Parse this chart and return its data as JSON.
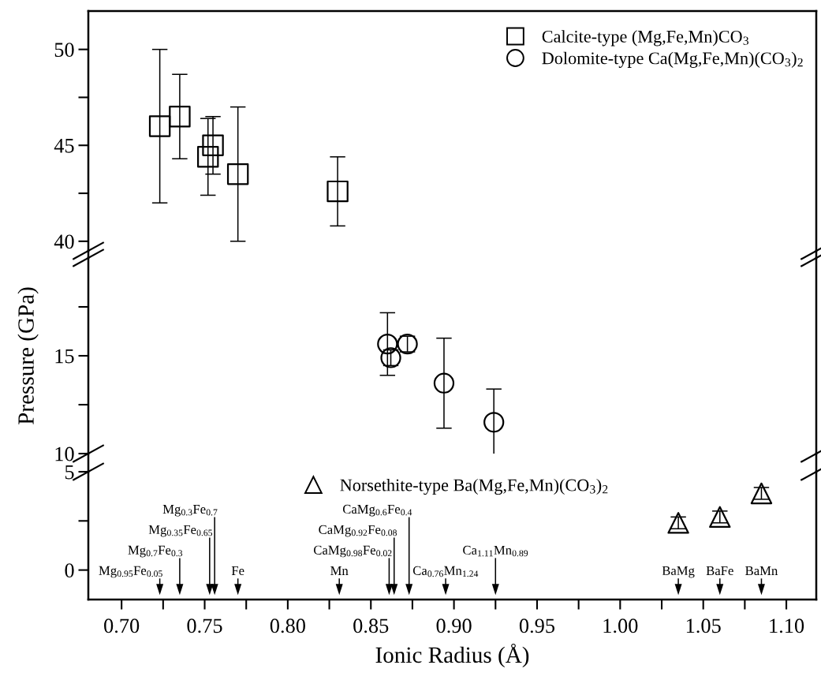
{
  "chart_data": [
    {
      "type": "scatter",
      "xlim": [
        0.68,
        1.118
      ],
      "ylim": [
        39.5,
        52
      ],
      "yticks": [
        40,
        {
          "value": 42.5,
          "label": null
        },
        45,
        {
          "value": 47.5,
          "label": null
        },
        50
      ],
      "tick_labels": "y",
      "legend": "top right",
      "marker": "square",
      "series": [
        {
          "name": "Calcite-type (Mg,Fe,Mn)CO$_{3}$",
          "color": "#000000",
          "x": [
            0.723,
            0.735,
            0.755,
            0.752,
            0.77,
            0.83
          ],
          "values": [
            46.0,
            46.5,
            45.0,
            44.4,
            43.5,
            42.6
          ],
          "errors": [
            4.0,
            2.2,
            1.5,
            2.0,
            3.5,
            1.8
          ]
        }
      ]
    },
    {
      "type": "scatter",
      "xlim": [
        0.68,
        1.118
      ],
      "ylim": [
        10,
        20
      ],
      "yticks": [
        10,
        {
          "value": 12.5,
          "label": null
        },
        15,
        {
          "value": 17.5,
          "label": null
        }
      ],
      "tick_labels": "y",
      "ylabel": "Pressure (GPa)",
      "marker": "circle",
      "legend": "top right",
      "series": [
        {
          "name": "Dolomite-type Ca(Mg,Fe,Mn)(CO$_{3}$)$_{2}$",
          "color": "#000000",
          "x": [
            0.86,
            0.862,
            0.872,
            0.894,
            0.924
          ],
          "values": [
            15.6,
            14.9,
            15.6,
            13.6,
            11.6
          ],
          "errors": [
            1.6,
            0.4,
            0.4,
            2.3,
            1.7
          ]
        }
      ]
    },
    {
      "type": "scatter",
      "xlim": [
        0.68,
        1.118
      ],
      "ylim": [
        -1.5,
        5
      ],
      "yticks": [
        0,
        {
          "value": 2.5,
          "label": null
        },
        5
      ],
      "xlabel": "Ionic Radius (Å)",
      "marker": "triangle",
      "legend": "top",
      "xticks": [
        {
          "value": 0.7,
          "label": "0.70"
        },
        {
          "value": 0.725,
          "label": null
        },
        {
          "value": 0.75,
          "label": "0.75"
        },
        {
          "value": 0.775,
          "label": null
        },
        {
          "value": 0.8,
          "label": "0.80"
        },
        {
          "value": 0.825,
          "label": null
        },
        {
          "value": 0.85,
          "label": "0.85"
        },
        {
          "value": 0.875,
          "label": null
        },
        {
          "value": 0.9,
          "label": "0.90"
        },
        {
          "value": 0.925,
          "label": null
        },
        {
          "value": 0.95,
          "label": "0.95"
        },
        {
          "value": 0.975,
          "label": null
        },
        {
          "value": 1.0,
          "label": "1.00"
        },
        {
          "value": 1.025,
          "label": null
        },
        {
          "value": 1.05,
          "label": "1.05"
        },
        {
          "value": 1.075,
          "label": null
        },
        {
          "value": 1.1,
          "label": "1.10"
        }
      ],
      "series": [
        {
          "name": "Norsethite-type Ba(Mg,Fe,Mn)(CO$_{3}$)$_{2}$",
          "color": "#000000",
          "x": [
            1.035,
            1.06,
            1.085
          ],
          "values": [
            2.4,
            2.7,
            3.9
          ],
          "errors": [
            0.3,
            0.3,
            0.3
          ]
        }
      ],
      "ref_lines": [
        {
          "axis": "x",
          "value": 0.723,
          "label": "Mg$_{0.95}$Fe$_{0.05}$",
          "color": "#000000"
        },
        {
          "axis": "x",
          "value": 0.735,
          "label": "Mg$_{0.7}$Fe$_{0.3}$",
          "color": "#000000"
        },
        {
          "axis": "x",
          "value": 0.753,
          "label": "Mg$_{0.35}$Fe$_{0.65}$",
          "color": "#000000"
        },
        {
          "axis": "x",
          "value": 0.756,
          "label": "Mg$_{0.3}$Fe$_{0.7}$",
          "color": "#000000"
        },
        {
          "axis": "x",
          "value": 0.77,
          "label": "Fe",
          "color": "#000000"
        },
        {
          "axis": "x",
          "value": 0.831,
          "label": "Mn",
          "color": "#000000"
        },
        {
          "axis": "x",
          "value": 0.861,
          "label": "CaMg$_{0.98}$Fe$_{0.02}$",
          "color": "#000000"
        },
        {
          "axis": "x",
          "value": 0.864,
          "label": "CaMg$_{0.92}$Fe$_{0.08}$",
          "color": "#000000"
        },
        {
          "axis": "x",
          "value": 0.873,
          "label": "CaMg$_{0.6}$Fe$_{0.4}$",
          "color": "#000000"
        },
        {
          "axis": "x",
          "value": 0.895,
          "label": "Ca$_{0.76}$Mn$_{1.24}$",
          "color": "#000000"
        },
        {
          "axis": "x",
          "value": 0.925,
          "label": "Ca$_{1.11}$Mn$_{0.89}$",
          "color": "#000000"
        },
        {
          "axis": "x",
          "value": 1.035,
          "label": "BaMg",
          "color": "#000000"
        },
        {
          "axis": "x",
          "value": 1.06,
          "label": "BaFe",
          "color": "#000000"
        },
        {
          "axis": "x",
          "value": 1.085,
          "label": "BaMn",
          "color": "#000000"
        }
      ]
    }
  ]
}
